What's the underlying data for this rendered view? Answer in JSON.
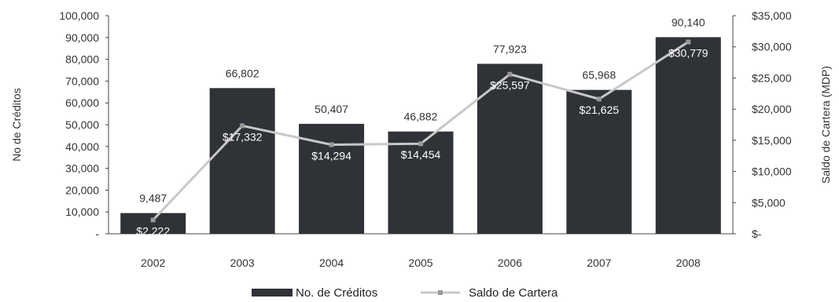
{
  "chart_data": {
    "type": "bar",
    "categories": [
      "2002",
      "2003",
      "2004",
      "2005",
      "2006",
      "2007",
      "2008"
    ],
    "series": [
      {
        "name": "No. de Créditos",
        "type": "bar",
        "axis": "left",
        "values": [
          9487,
          66802,
          50407,
          46882,
          77923,
          65968,
          90140
        ],
        "labels": [
          "9,487",
          "66,802",
          "50,407",
          "46,882",
          "77,923",
          "65,968",
          "90,140"
        ],
        "color": "#2f3236"
      },
      {
        "name": "Saldo de Cartera",
        "type": "line",
        "axis": "right",
        "values": [
          2222,
          17332,
          14294,
          14454,
          25597,
          21625,
          30779
        ],
        "labels": [
          "$2,222",
          "$17,332",
          "$14,294",
          "$14,454",
          "$25,597",
          "$21,625",
          "$30,779"
        ],
        "color": "#c8c8c8"
      }
    ],
    "ylabel": "No de Créditos",
    "y2label": "Saldo de Cartera (MDP)",
    "ylim": [
      0,
      100000
    ],
    "y2lim": [
      0,
      35000
    ],
    "yticks": [
      "-",
      "10,000",
      "20,000",
      "30,000",
      "40,000",
      "50,000",
      "60,000",
      "70,000",
      "80,000",
      "90,000",
      "100,000"
    ],
    "y2ticks": [
      "$-",
      "$5,000",
      "$10,000",
      "$15,000",
      "$20,000",
      "$25,000",
      "$30,000",
      "$35,000"
    ],
    "grid": false,
    "legend": "bottom-center"
  }
}
